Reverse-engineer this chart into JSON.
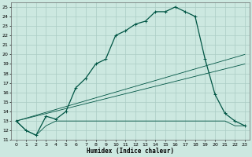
{
  "title": "",
  "xlabel": "Humidex (Indice chaleur)",
  "bg_color": "#cce8e0",
  "grid_color": "#aaccc4",
  "line_color": "#005544",
  "xlim": [
    -0.5,
    23.5
  ],
  "ylim": [
    11,
    25.5
  ],
  "xticks": [
    0,
    1,
    2,
    3,
    4,
    5,
    6,
    7,
    8,
    9,
    10,
    11,
    12,
    13,
    14,
    15,
    16,
    17,
    18,
    19,
    20,
    21,
    22,
    23
  ],
  "yticks": [
    11,
    12,
    13,
    14,
    15,
    16,
    17,
    18,
    19,
    20,
    21,
    22,
    23,
    24,
    25
  ],
  "curve1_x": [
    0,
    1,
    2,
    3,
    4,
    5,
    6,
    7,
    8,
    9,
    10,
    11,
    12,
    13,
    14,
    15,
    16,
    17,
    18,
    19,
    20,
    21,
    22,
    23
  ],
  "curve1_y": [
    13,
    12,
    11.5,
    13.5,
    13.2,
    14.0,
    16.5,
    17.5,
    19.0,
    19.5,
    22.0,
    22.5,
    23.2,
    23.5,
    24.5,
    24.5,
    25.0,
    24.5,
    24.0,
    19.5,
    15.8,
    13.8,
    13.0,
    12.5
  ],
  "curve2_x": [
    0,
    1,
    2,
    3,
    4,
    5,
    6,
    7,
    8,
    9,
    10,
    11,
    12,
    13,
    14,
    15,
    16,
    17,
    18,
    19,
    20,
    21,
    22,
    23
  ],
  "curve2_y": [
    13,
    12,
    11.5,
    12.5,
    13,
    13,
    13,
    13,
    13,
    13,
    13,
    13,
    13,
    13,
    13,
    13,
    13,
    13,
    13,
    13,
    13,
    13,
    12.5,
    12.5
  ],
  "curve3_x": [
    0,
    23
  ],
  "curve3_y": [
    13,
    20
  ],
  "curve4_x": [
    0,
    23
  ],
  "curve4_y": [
    13,
    19
  ]
}
